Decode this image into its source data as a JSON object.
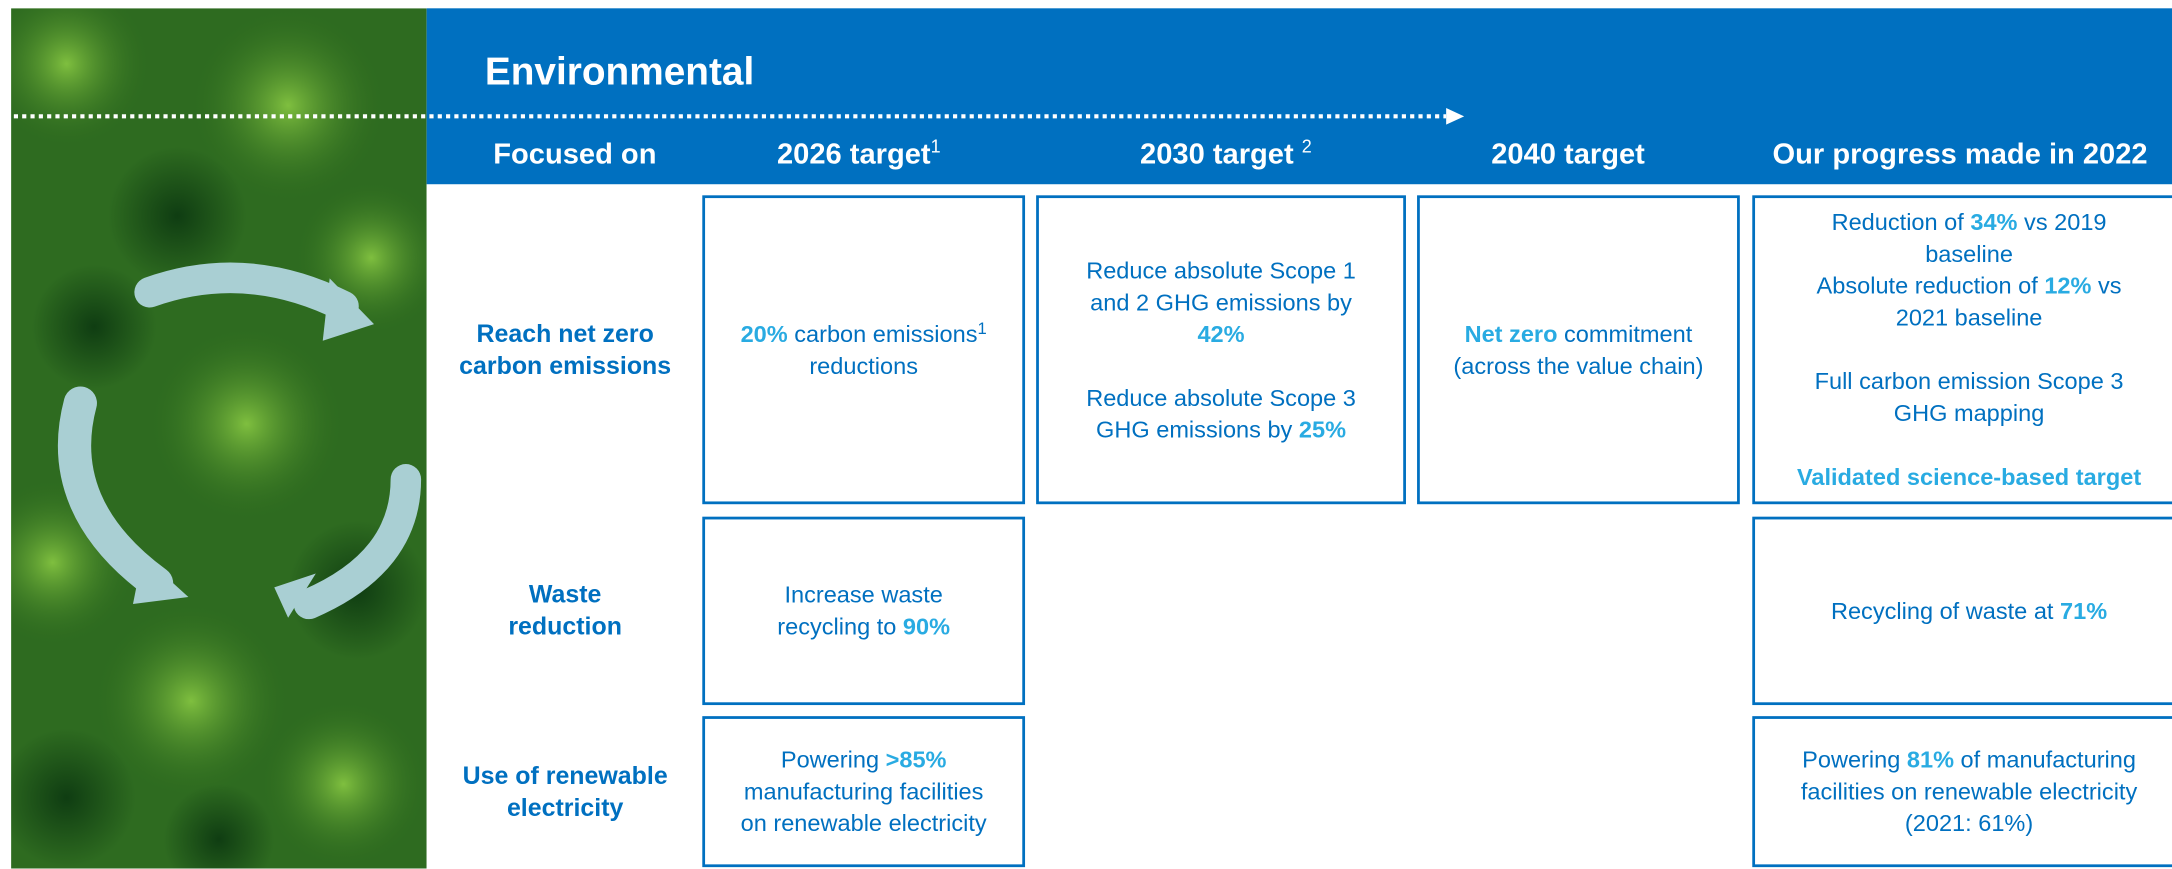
{
  "header": {
    "title": "Environmental",
    "columns": [
      {
        "text": "Focused on"
      },
      {
        "text": "2026 target",
        "sup": "1"
      },
      {
        "text": "2030 target ",
        "sup": "2"
      },
      {
        "text": "2040 target"
      },
      {
        "text": "Our progress made in 2022"
      }
    ]
  },
  "rows": [
    {
      "focus": [
        "Reach net zero",
        "carbon emissions"
      ],
      "target_2026": [
        [
          [
            {
              "h": "20%"
            },
            " carbon emissions",
            {
              "sup": "1"
            }
          ],
          [
            "reductions"
          ]
        ]
      ],
      "target_2030": [
        [
          [
            "Reduce absolute Scope 1"
          ],
          [
            "and 2 GHG emissions by"
          ],
          [
            {
              "h": "42%"
            }
          ]
        ],
        [
          [
            "Reduce absolute Scope 3"
          ],
          [
            "GHG emissions by ",
            {
              "h": "25%"
            }
          ]
        ]
      ],
      "target_2040": [
        [
          [
            {
              "h": "Net zero"
            },
            " commitment"
          ],
          [
            "(across the value chain)"
          ]
        ]
      ],
      "progress": [
        [
          [
            "Reduction of ",
            {
              "h": "34%"
            },
            " vs 2019"
          ],
          [
            "baseline"
          ],
          [
            "Absolute reduction of ",
            {
              "h": "12%"
            },
            " vs"
          ],
          [
            "2021 baseline"
          ]
        ],
        [
          [
            "Full carbon emission Scope 3"
          ],
          [
            "GHG mapping"
          ]
        ],
        [
          [
            {
              "h": "Validated science-based target"
            }
          ]
        ]
      ]
    },
    {
      "focus": [
        "Waste",
        "reduction"
      ],
      "target_2026": [
        [
          [
            "Increase waste"
          ],
          [
            "recycling to ",
            {
              "h": "90%"
            }
          ]
        ]
      ],
      "progress": [
        [
          [
            "Recycling of waste at ",
            {
              "h": "71%"
            }
          ]
        ]
      ]
    },
    {
      "focus": [
        "Use of renewable",
        "electricity"
      ],
      "target_2026": [
        [
          [
            "Powering ",
            {
              "h": ">85%"
            }
          ],
          [
            "manufacturing facilities"
          ],
          [
            "on renewable electricity"
          ]
        ]
      ],
      "progress": [
        [
          [
            "Powering ",
            {
              "h": "81%"
            },
            " of manufacturing"
          ],
          [
            "facilities on renewable electricity"
          ],
          [
            "(2021: 61%)"
          ]
        ]
      ]
    }
  ]
}
